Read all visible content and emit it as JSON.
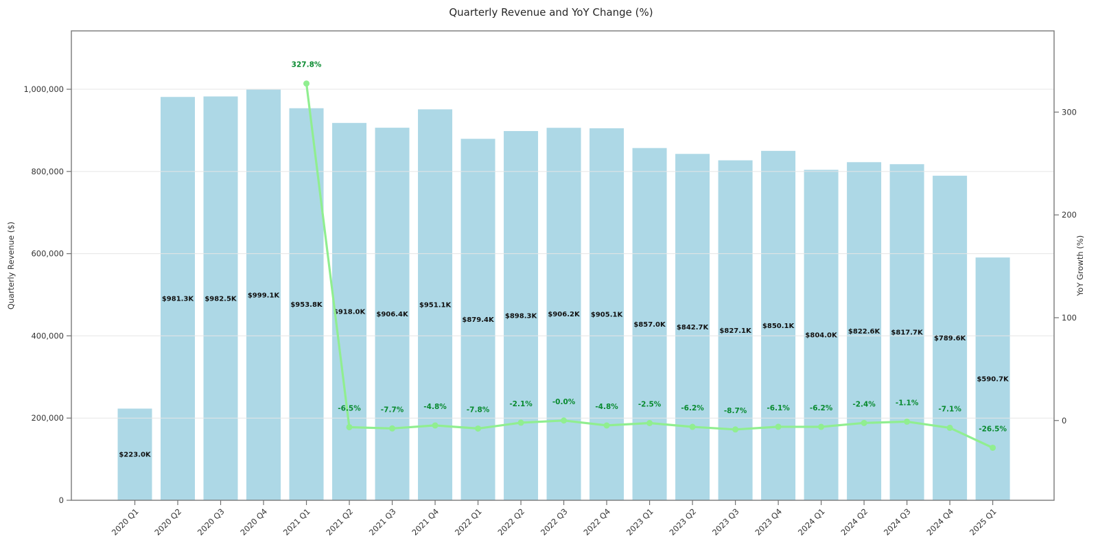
{
  "chart_data": {
    "type": "bar+line",
    "title": "Quarterly Revenue and YoY Change (%)",
    "categories": [
      "2020 Q1",
      "2020 Q2",
      "2020 Q3",
      "2020 Q4",
      "2021 Q1",
      "2021 Q2",
      "2021 Q3",
      "2021 Q4",
      "2022 Q1",
      "2022 Q2",
      "2022 Q3",
      "2022 Q4",
      "2023 Q1",
      "2023 Q2",
      "2023 Q3",
      "2023 Q4",
      "2024 Q1",
      "2024 Q2",
      "2024 Q3",
      "2024 Q4",
      "2025 Q1"
    ],
    "series": [
      {
        "name": "Quarterly Revenue",
        "type": "bar",
        "axis": "left",
        "values": [
          223000,
          981300,
          982500,
          999100,
          953800,
          918000,
          906400,
          951100,
          879400,
          898300,
          906200,
          905100,
          857000,
          842700,
          827100,
          850100,
          804000,
          822600,
          817700,
          789600,
          590700
        ],
        "labels": [
          "$223.0K",
          "$981.3K",
          "$982.5K",
          "$999.1K",
          "$953.8K",
          "$918.0K",
          "$906.4K",
          "$951.1K",
          "$879.4K",
          "$898.3K",
          "$906.2K",
          "$905.1K",
          "$857.0K",
          "$842.7K",
          "$827.1K",
          "$850.1K",
          "$804.0K",
          "$822.6K",
          "$817.7K",
          "$789.6K",
          "$590.7K"
        ],
        "color": "#ADD8E6"
      },
      {
        "name": "YoY Growth",
        "type": "line",
        "axis": "right",
        "start_index": 4,
        "values": [
          327.8,
          -6.5,
          -7.7,
          -4.8,
          -7.8,
          -2.1,
          -0.0,
          -4.8,
          -2.5,
          -6.2,
          -8.7,
          -6.1,
          -6.2,
          -2.4,
          -1.1,
          -7.1,
          -26.5
        ],
        "labels": [
          "327.8%",
          "-6.5%",
          "-7.7%",
          "-4.8%",
          "-7.8%",
          "-2.1%",
          "-0.0%",
          "-4.8%",
          "-2.5%",
          "-6.2%",
          "-8.7%",
          "-6.1%",
          "-6.2%",
          "-2.4%",
          "-1.1%",
          "-7.1%",
          "-26.5%"
        ],
        "color": "#90EE90",
        "label_color": "#088a2f"
      }
    ],
    "left_axis": {
      "label": "Quarterly Revenue ($)",
      "ticks": [
        0,
        200000,
        400000,
        600000,
        800000,
        1000000
      ],
      "tick_labels": [
        "0",
        "200,000",
        "400,000",
        "600,000",
        "800,000",
        "1,000,000"
      ],
      "range": [
        0,
        1142000
      ]
    },
    "right_axis": {
      "label": "YoY Growth (%)",
      "ticks": [
        0,
        100,
        200,
        300
      ],
      "tick_labels": [
        "0",
        "100",
        "200",
        "300"
      ],
      "range": [
        -77.6,
        379.0
      ]
    },
    "x_axis": {
      "range": [
        -1.48,
        21.43
      ],
      "tick_rotation_deg": 45
    },
    "grid": "horizontal gridlines at left-axis ticks, drawn over bars",
    "legend": "none",
    "colors": {
      "bar_fill": "#ADD8E6",
      "line": "#90EE90",
      "pct_label": "#088a2f",
      "bar_label": "#111111",
      "gridline": "#e5e5e5",
      "spine": "#787878",
      "tick": "#707070"
    }
  }
}
